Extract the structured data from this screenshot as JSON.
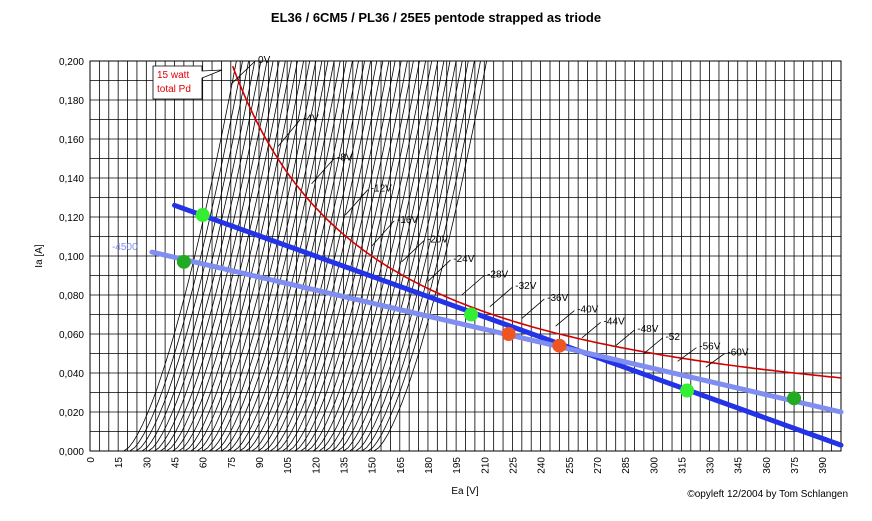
{
  "chart_data": {
    "type": "line",
    "title": "EL36 / 6CM5 / PL36 / 25E5 pentode strapped as triode",
    "xlabel": "Ea [V]",
    "ylabel": "Ia [A]",
    "xlim": [
      0,
      400
    ],
    "ylim": [
      0,
      0.2
    ],
    "grid": true,
    "x_ticks": [
      "0",
      "15",
      "30",
      "45",
      "60",
      "75",
      "90",
      "105",
      "120",
      "135",
      "150",
      "165",
      "180",
      "195",
      "210",
      "225",
      "240",
      "255",
      "270",
      "285",
      "300",
      "315",
      "330",
      "345",
      "360",
      "375",
      "390"
    ],
    "y_ticks": [
      "0,000",
      "0,020",
      "0,040",
      "0,060",
      "0,080",
      "0,100",
      "0,120",
      "0,140",
      "0,160",
      "0,180",
      "0,200"
    ],
    "pd_callout": "15 watt\ntotal Pd",
    "credit": "©opyleft 12/2004 by Tom Schlangen",
    "curve_label_x_offset": 1.5,
    "curve_label_y_offset": 0.001,
    "grid_curves": {
      "start_v": 18,
      "step_v": 3.25,
      "count": 42,
      "ia_max": 0.2
    },
    "bias_curves": [
      {
        "label": "0V",
        "points": [
          [
            75,
            0.188
          ],
          [
            88,
            0.2
          ]
        ]
      },
      {
        "label": "-4V",
        "points": [
          [
            100,
            0.156
          ],
          [
            112,
            0.17
          ]
        ]
      },
      {
        "label": "-8V",
        "points": [
          [
            118,
            0.137
          ],
          [
            130,
            0.15
          ]
        ]
      },
      {
        "label": "-12V",
        "points": [
          [
            136,
            0.121
          ],
          [
            148,
            0.134
          ]
        ]
      },
      {
        "label": "-16V",
        "points": [
          [
            150,
            0.105
          ],
          [
            162,
            0.118
          ]
        ]
      },
      {
        "label": "-20V",
        "points": [
          [
            166,
            0.097
          ],
          [
            178,
            0.108
          ]
        ]
      },
      {
        "label": "-24V",
        "points": [
          [
            180,
            0.087
          ],
          [
            192,
            0.098
          ]
        ]
      },
      {
        "label": "-28V",
        "points": [
          [
            198,
            0.08
          ],
          [
            210,
            0.09
          ]
        ]
      },
      {
        "label": "-32V",
        "points": [
          [
            213,
            0.074
          ],
          [
            225,
            0.084
          ]
        ]
      },
      {
        "label": "-36V",
        "points": [
          [
            230,
            0.068
          ],
          [
            242,
            0.078
          ]
        ]
      },
      {
        "label": "-40V",
        "points": [
          [
            248,
            0.064
          ],
          [
            258,
            0.072
          ]
        ]
      },
      {
        "label": "-44V",
        "points": [
          [
            262,
            0.058
          ],
          [
            272,
            0.066
          ]
        ]
      },
      {
        "label": "-48V",
        "points": [
          [
            280,
            0.054
          ],
          [
            290,
            0.062
          ]
        ]
      },
      {
        "label": "-52",
        "points": [
          [
            295,
            0.05
          ],
          [
            305,
            0.058
          ]
        ]
      },
      {
        "label": "-56V",
        "points": [
          [
            313,
            0.046
          ],
          [
            323,
            0.053
          ]
        ]
      },
      {
        "label": "-60V",
        "points": [
          [
            328,
            0.043
          ],
          [
            338,
            0.05
          ]
        ]
      }
    ],
    "pd_line": {
      "name": "15 watt total Pd",
      "watts": 15,
      "v_start": 76,
      "v_end": 400,
      "color": "#d40000"
    },
    "load_lines": [
      {
        "points": [
          [
            45,
            0.126
          ],
          [
            400,
            0.003
          ]
        ],
        "color": "#2233e8",
        "width": 5
      },
      {
        "points": [
          [
            33,
            0.102
          ],
          [
            400,
            0.02
          ]
        ],
        "color": "#7f8ef0",
        "width": 5,
        "label": "-4500"
      }
    ],
    "points": [
      {
        "x": 60,
        "y": 0.121,
        "color": "#33ee33"
      },
      {
        "x": 50,
        "y": 0.097,
        "color": "#22aa22"
      },
      {
        "x": 203,
        "y": 0.07,
        "color": "#33ee33"
      },
      {
        "x": 223,
        "y": 0.06,
        "color": "#ee5522"
      },
      {
        "x": 250,
        "y": 0.054,
        "color": "#ee5522"
      },
      {
        "x": 318,
        "y": 0.031,
        "color": "#33ee33"
      },
      {
        "x": 375,
        "y": 0.027,
        "color": "#22aa22"
      }
    ]
  }
}
